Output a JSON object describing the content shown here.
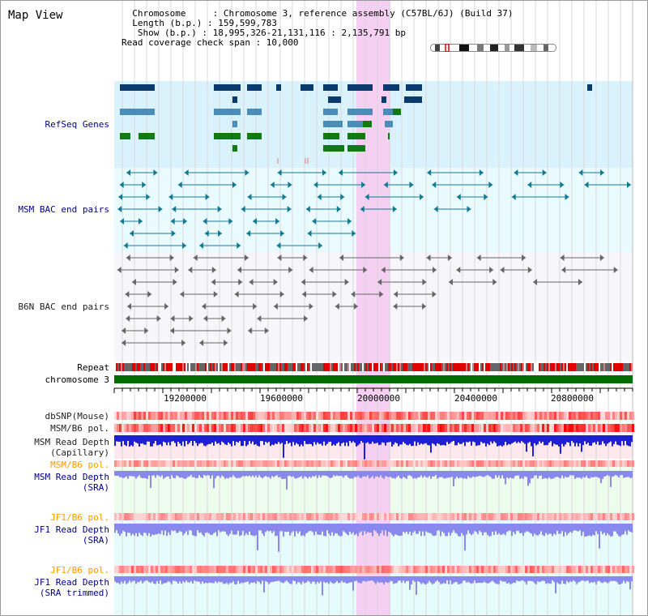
{
  "title": "Map View",
  "info": {
    "lines": [
      "  Chromosome     : Chromosome 3, reference assembly (C57BL/6J) (Build 37)",
      "  Length (b.p.) : 159,599,783",
      "   Show (b.p.) : 18,995,326-21,131,116 : 2,135,791 bp",
      "Read coverage check span : 10,000"
    ]
  },
  "labels": {
    "refseq": "RefSeq Genes",
    "msm_bac": "MSM BAC end pairs",
    "b6n_bac": "B6N BAC end pairs",
    "repeat": "Repeat",
    "chromosome": "chromosome 3",
    "dbsnp": "dbSNP(Mouse)",
    "msm_b6_pol": "MSM/B6 pol.",
    "msm_depth_cap_1": "MSM Read Depth",
    "msm_depth_cap_2": "(Capillary)",
    "msm_b6_pol_2": "MSM/B6 pol.",
    "msm_depth_sra_1": "MSM Read Depth",
    "msm_depth_sra_2": "(SRA)",
    "jf1_b6_pol": "JF1/B6 pol.",
    "jf1_depth_sra_1": "JF1 Read Depth",
    "jf1_depth_sra_2": "(SRA)",
    "jf1_b6_pol_2": "JF1/B6 pol.",
    "jf1_depth_trim_1": "JF1 Read Depth",
    "jf1_depth_trim_2": "(SRA trimmed)"
  },
  "ruler": {
    "ticks": [
      "19200000",
      "19600000",
      "20000000",
      "20400000",
      "20800000"
    ]
  },
  "colors": {
    "refseq_bg": "#d9f2fb",
    "msm_bg": "#e9fbfe",
    "b6n_bg": "#f7f7fb",
    "highlight": "#f6d0f3",
    "gene_dark": "#0b3b6e",
    "gene_mid": "#4a8db8",
    "gene_green": "#127a12",
    "msm_line": "#137a94",
    "b6n_line": "#666666",
    "chrom_bar": "#006b00",
    "depth_blue": "#1f1fd6",
    "depth_light": "#8888ee"
  }
}
